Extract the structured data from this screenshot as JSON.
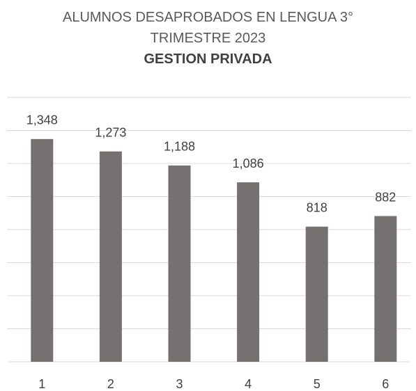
{
  "chart_data": {
    "type": "bar",
    "title": "ALUMNOS DESAPROBADOS EN LENGUA 3° TRIMESTRE 2023",
    "subtitle": "GESTION PRIVADA",
    "categories": [
      "1",
      "2",
      "3",
      "4",
      "5",
      "6"
    ],
    "values": [
      1348,
      1273,
      1188,
      1086,
      818,
      882
    ],
    "value_labels": [
      "1,348",
      "1,273",
      "1,188",
      "1,086",
      "818",
      "882"
    ],
    "color": "#767171",
    "ylim": [
      0,
      1600
    ],
    "yticks": [
      0,
      200,
      400,
      600,
      800,
      1000,
      1200,
      1400,
      1600
    ],
    "grid": true
  }
}
